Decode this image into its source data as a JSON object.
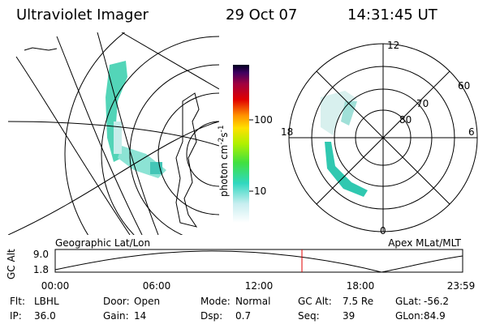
{
  "header": {
    "title": "Ultraviolet Imager",
    "date": "29 Oct 07",
    "time": "14:31:45 UT"
  },
  "colorbar": {
    "label": "photon cm",
    "exp1": "-2",
    "unit2": "s",
    "exp2": "-1",
    "ticks": [
      "100",
      "10"
    ]
  },
  "polar": {
    "labels": [
      "12",
      "18",
      "6",
      "0",
      "60",
      "70",
      "80"
    ]
  },
  "captions": {
    "left": "Geographic Lat/Lon",
    "right": "Apex MLat/MLT"
  },
  "altitude_plot": {
    "ylabel": "GC Alt",
    "yticks": [
      "9.0",
      "1.8"
    ],
    "xticks": [
      "00:00",
      "06:00",
      "12:00",
      "18:00",
      "23:59"
    ]
  },
  "info": {
    "rows": [
      [
        [
          "Flt:",
          "LBHL"
        ],
        [
          "Door:",
          "Open"
        ],
        [
          "Mode:",
          "Normal"
        ],
        [
          "GC Alt:",
          "7.5 Re"
        ],
        [
          "GLat:",
          "-56.2"
        ]
      ],
      [
        [
          "IP:",
          "36.0"
        ],
        [
          "Gain:",
          "14"
        ],
        [
          "Dsp:",
          "0.7"
        ],
        [
          "Seq:",
          "39"
        ],
        [
          "GLon:",
          "84.9"
        ]
      ]
    ]
  }
}
